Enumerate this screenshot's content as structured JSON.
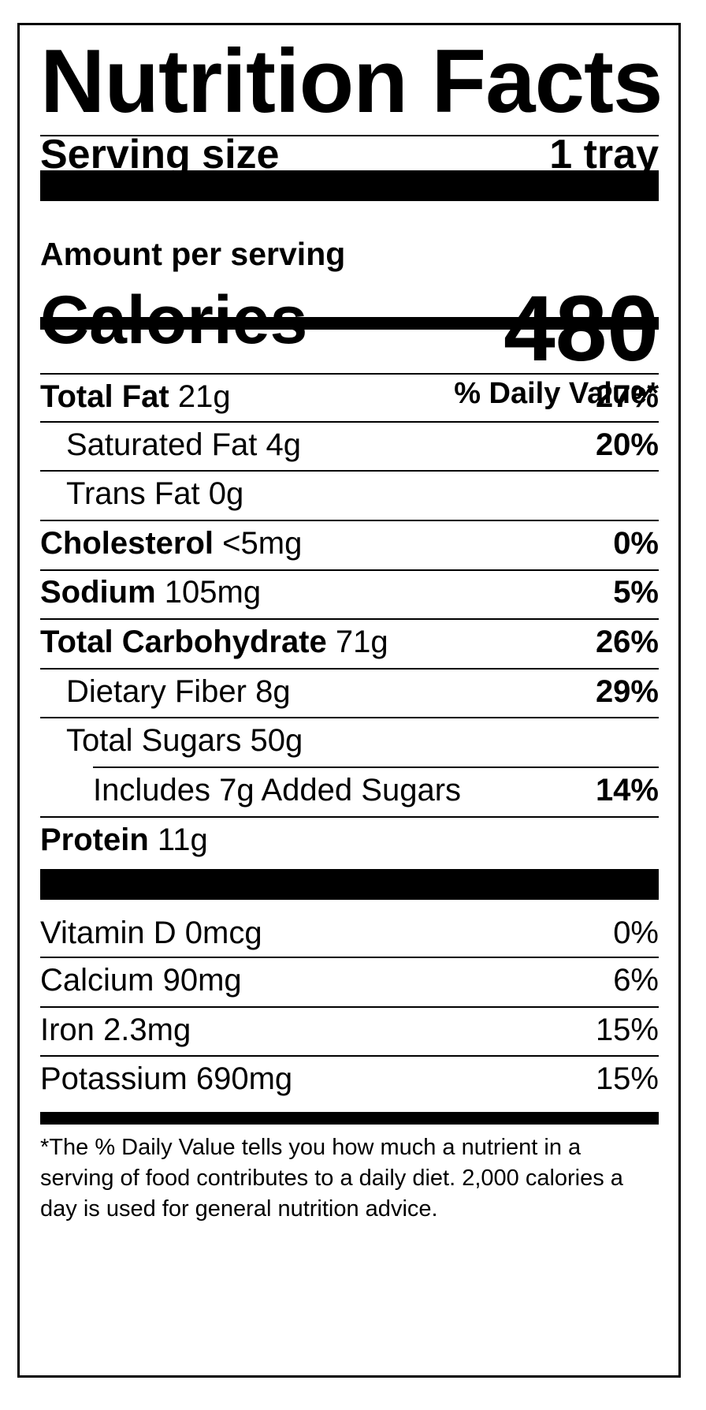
{
  "title": "Nutrition Facts",
  "serving": {
    "label": "Serving size",
    "value": "1 tray"
  },
  "amount_per_serving": "Amount per serving",
  "calories": {
    "label": "Calories",
    "value": "480"
  },
  "daily_value_header": "% Daily Value*",
  "nutrients": [
    {
      "name": "Total Fat",
      "amount": "21g",
      "dv": "27%"
    },
    {
      "name": "Saturated Fat",
      "amount": "4g",
      "dv": "20%"
    },
    {
      "name": "Trans Fat",
      "amount": "0g",
      "dv": ""
    },
    {
      "name": "Cholesterol",
      "amount": "<5mg",
      "dv": "0%"
    },
    {
      "name": "Sodium",
      "amount": "105mg",
      "dv": "5%"
    },
    {
      "name": "Total Carbohydrate",
      "amount": "71g",
      "dv": "26%"
    },
    {
      "name": "Dietary Fiber",
      "amount": "8g",
      "dv": "29%"
    },
    {
      "name": "Total Sugars",
      "amount": "50g",
      "dv": ""
    },
    {
      "name": "Includes 7g Added Sugars",
      "amount": "",
      "dv": "14%"
    },
    {
      "name": "Protein",
      "amount": "11g",
      "dv": ""
    }
  ],
  "vitamins": [
    {
      "name": "Vitamin D",
      "amount": "0mcg",
      "dv": "0%"
    },
    {
      "name": "Calcium",
      "amount": "90mg",
      "dv": "6%"
    },
    {
      "name": "Iron",
      "amount": "2.3mg",
      "dv": "15%"
    },
    {
      "name": "Potassium",
      "amount": "690mg",
      "dv": "15%"
    }
  ],
  "footnote": "*The % Daily Value tells you how much a nutrient in a serving of food contributes to a daily diet. 2,000 calories a day is used for general nutrition advice."
}
